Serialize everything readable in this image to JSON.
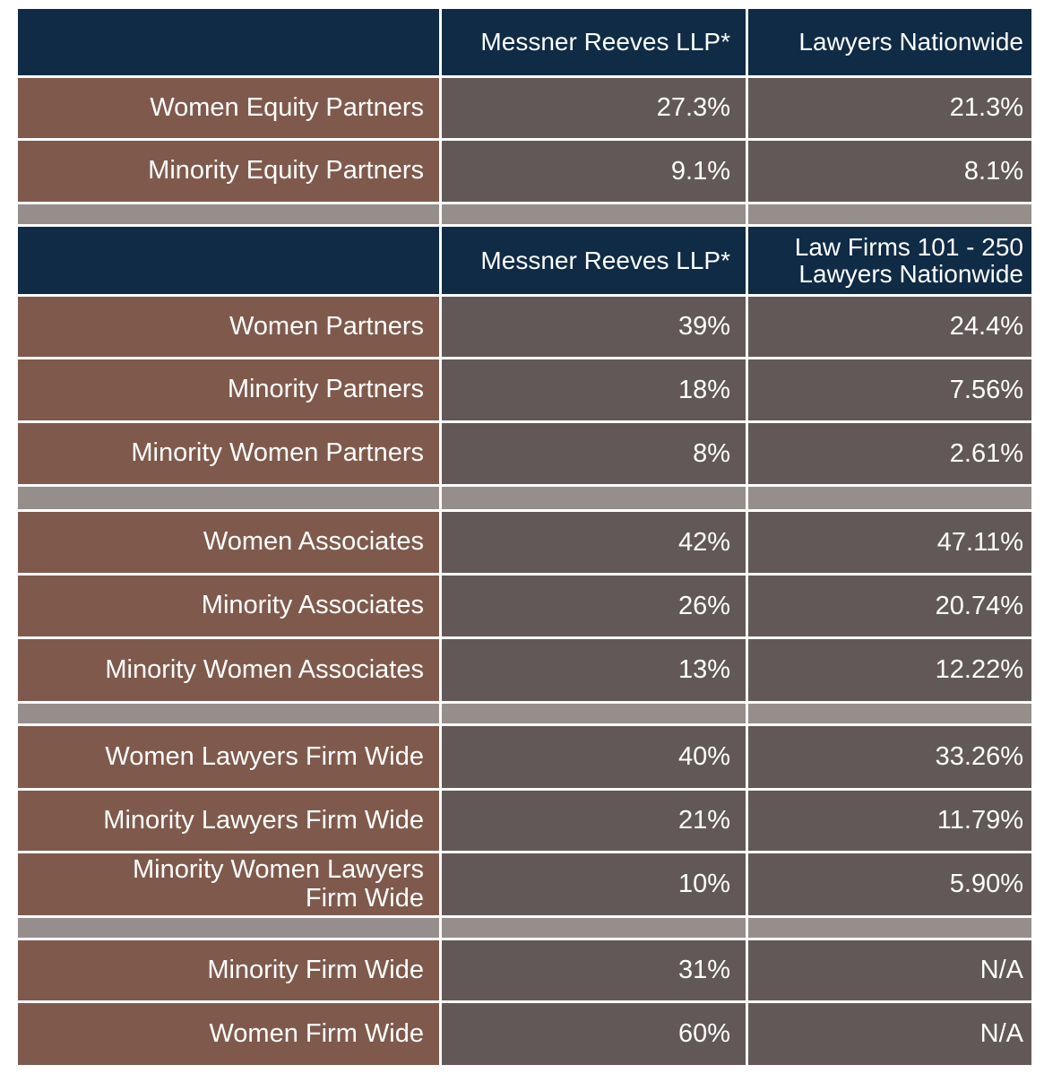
{
  "chart_data": {
    "type": "table",
    "colors": {
      "header": "#0f2b45",
      "label_cell": "#7f5a4c",
      "value_cell": "#635858",
      "spacer": "#968e8b"
    },
    "sections": [
      {
        "header": [
          "",
          "Messner Reeves LLP*",
          "Lawyers Nationwide"
        ],
        "rows": [
          {
            "label": "Women Equity Partners",
            "values": [
              "27.3%",
              "21.3%"
            ]
          },
          {
            "label": "Minority Equity Partners",
            "values": [
              "9.1%",
              "8.1%"
            ]
          }
        ]
      },
      {
        "header": [
          "",
          "Messner Reeves LLP*",
          "Law Firms 101 - 250 Lawyers Nationwide"
        ],
        "rows": [
          {
            "label": "Women Partners",
            "values": [
              "39%",
              "24.4%"
            ]
          },
          {
            "label": "Minority Partners",
            "values": [
              "18%",
              "7.56%"
            ]
          },
          {
            "label": "Minority Women Partners",
            "values": [
              "8%",
              "2.61%"
            ]
          }
        ]
      },
      {
        "rows": [
          {
            "label": "Women Associates",
            "values": [
              "42%",
              "47.11%"
            ]
          },
          {
            "label": "Minority Associates",
            "values": [
              "26%",
              "20.74%"
            ]
          },
          {
            "label": "Minority Women Associates",
            "values": [
              "13%",
              "12.22%"
            ]
          }
        ]
      },
      {
        "rows": [
          {
            "label": "Women Lawyers Firm Wide",
            "values": [
              "40%",
              "33.26%"
            ]
          },
          {
            "label": "Minority Lawyers Firm Wide",
            "values": [
              "21%",
              "11.79%"
            ]
          },
          {
            "label": "Minority Women Lawyers Firm Wide",
            "values": [
              "10%",
              "5.90%"
            ]
          }
        ]
      },
      {
        "rows": [
          {
            "label": "Minority Firm Wide",
            "values": [
              "31%",
              "N/A"
            ]
          },
          {
            "label": "Women Firm Wide",
            "values": [
              "60%",
              "N/A"
            ]
          }
        ]
      }
    ]
  }
}
